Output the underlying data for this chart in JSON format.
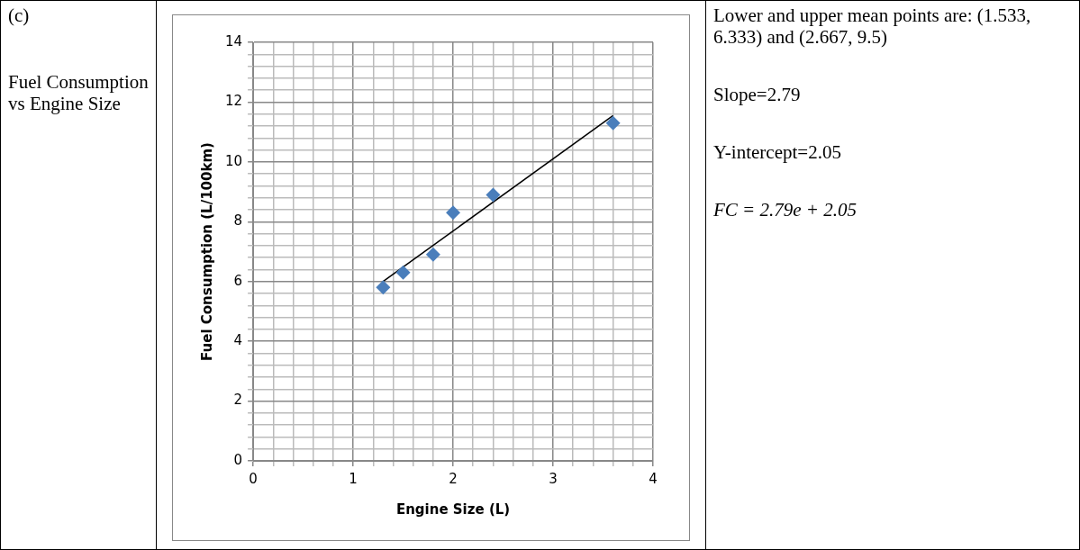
{
  "chart_data": {
    "type": "scatter",
    "xlabel": "Engine Size (L)",
    "ylabel": "Fuel Consumption (L/100km)",
    "series": [
      {
        "color": "#4a7ebb",
        "marker": "diamond",
        "x": [
          1.3,
          1.5,
          1.8,
          2.0,
          2.4,
          3.6
        ],
        "values": [
          5.8,
          6.3,
          6.9,
          8.3,
          8.9,
          11.3
        ]
      },
      {
        "type": "line",
        "color": "#000000",
        "marker": "none",
        "x": [
          1.3,
          3.6
        ],
        "values": [
          6.0,
          11.55
        ]
      }
    ],
    "xlim": [
      0,
      4
    ],
    "ylim": [
      0,
      14
    ],
    "xticks": [
      0,
      {
        "value": 0.2,
        "label": null
      },
      {
        "value": 0.4,
        "label": null
      },
      {
        "value": 0.6,
        "label": null
      },
      {
        "value": 0.8,
        "label": null
      },
      1,
      {
        "value": 1.2,
        "label": null
      },
      {
        "value": 1.4,
        "label": null
      },
      {
        "value": 1.6,
        "label": null
      },
      {
        "value": 1.8,
        "label": null
      },
      2,
      {
        "value": 2.2,
        "label": null
      },
      {
        "value": 2.4,
        "label": null
      },
      {
        "value": 2.6,
        "label": null
      },
      {
        "value": 2.8,
        "label": null
      },
      3,
      {
        "value": 3.2,
        "label": null
      },
      {
        "value": 3.4,
        "label": null
      },
      {
        "value": 3.6,
        "label": null
      },
      {
        "value": 3.8,
        "label": null
      },
      4
    ],
    "yticks": [
      0,
      {
        "value": 0.4,
        "label": null
      },
      {
        "value": 0.8,
        "label": null
      },
      {
        "value": 1.2,
        "label": null
      },
      {
        "value": 1.6,
        "label": null
      },
      2,
      {
        "value": 2.4,
        "label": null
      },
      {
        "value": 2.8,
        "label": null
      },
      {
        "value": 3.2,
        "label": null
      },
      {
        "value": 3.6,
        "label": null
      },
      4,
      {
        "value": 4.4,
        "label": null
      },
      {
        "value": 4.8,
        "label": null
      },
      {
        "value": 5.2,
        "label": null
      },
      {
        "value": 5.6,
        "label": null
      },
      6,
      {
        "value": 6.4,
        "label": null
      },
      {
        "value": 6.8,
        "label": null
      },
      {
        "value": 7.2,
        "label": null
      },
      {
        "value": 7.6,
        "label": null
      },
      8,
      {
        "value": 8.4,
        "label": null
      },
      {
        "value": 8.8,
        "label": null
      },
      {
        "value": 9.2,
        "label": null
      },
      {
        "value": 9.6,
        "label": null
      },
      10,
      {
        "value": 10.4,
        "label": null
      },
      {
        "value": 10.8,
        "label": null
      },
      {
        "value": 11.2,
        "label": null
      },
      {
        "value": 11.6,
        "label": null
      },
      12,
      {
        "value": 12.4,
        "label": null
      },
      {
        "value": 12.8,
        "label": null
      },
      {
        "value": 13.2,
        "label": null
      },
      {
        "value": 13.6,
        "label": null
      },
      14
    ],
    "grid": true,
    "legend": false,
    "annotations": [
      "(c)",
      "Fuel Consumption vs Engine Size",
      "Lower and upper mean points are:  (1.533, 6.333) and (2.667, 9.5)",
      "Slope=2.79",
      "Y-intercept=2.05",
      "FC = 2.79e + 2.05"
    ]
  }
}
